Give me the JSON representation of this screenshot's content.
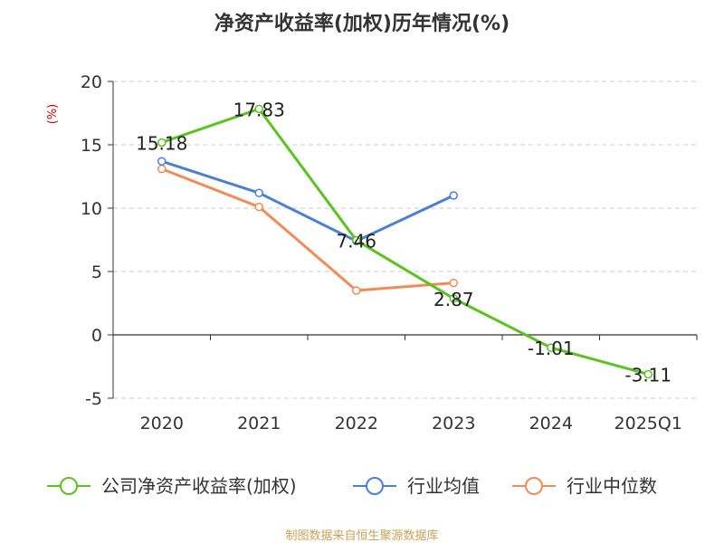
{
  "chart_data": {
    "type": "line",
    "title": "净资产收益率(加权)历年情况(%)",
    "ylabel": "(%)",
    "xlabel": "",
    "categories": [
      "2020",
      "2021",
      "2022",
      "2023",
      "2024",
      "2025Q1"
    ],
    "yticks": [
      "20",
      "15",
      "10",
      "5",
      "0",
      "-5"
    ],
    "ylim": [
      -5,
      20
    ],
    "grid": true,
    "legend_position": "bottom",
    "series": [
      {
        "name": "公司净资产收益率(加权)",
        "color": "#5bc31f",
        "values": [
          15.18,
          17.83,
          7.46,
          2.87,
          -1.01,
          -3.11
        ],
        "labels": [
          "15.18",
          "17.83",
          "7.46",
          "2.87",
          "-1.01",
          "-3.11"
        ]
      },
      {
        "name": "行业均值",
        "color": "#4a7fd8",
        "values": [
          13.7,
          11.2,
          7.4,
          11.0,
          null,
          null
        ]
      },
      {
        "name": "行业中位数",
        "color": "#f28b55",
        "values": [
          13.1,
          10.1,
          3.5,
          4.1,
          null,
          null
        ]
      }
    ]
  },
  "footer": {
    "source": "制图数据来自恒生聚源数据库"
  }
}
